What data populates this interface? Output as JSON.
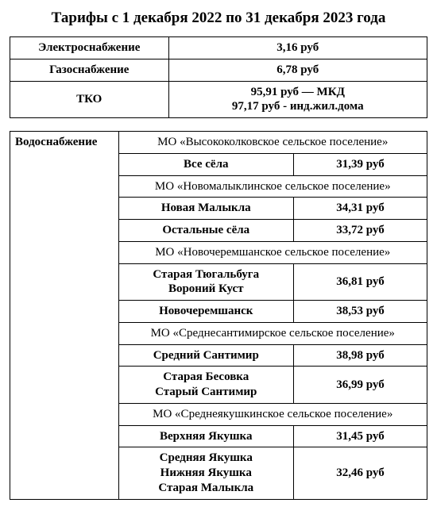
{
  "title": "Тарифы с 1 декабря 2022 по 31 декабря 2023 года",
  "topTable": {
    "rows": [
      {
        "label": "Электроснабжение",
        "value": "3,16 руб"
      },
      {
        "label": "Газоснабжение",
        "value": "6,78 руб"
      },
      {
        "label": "ТКО",
        "value": "95,91 руб — МКД\n97,17 руб - инд.жил.дома"
      }
    ]
  },
  "water": {
    "label": "Водоснабжение",
    "sections": [
      {
        "name": "МО «Высококолковское сельское поселение»",
        "rows": [
          {
            "place": "Все сёла",
            "price": "31,39 руб"
          }
        ]
      },
      {
        "name": "МО «Новомалыклинское сельское поселение»",
        "rows": [
          {
            "place": "Новая Малыкла",
            "price": "34,31 руб"
          },
          {
            "place": "Остальные сёла",
            "price": "33,72 руб"
          }
        ]
      },
      {
        "name": "МО «Новочеремшанское сельское поселение»",
        "rows": [
          {
            "place": "Старая Тюгальбуга\nВороний Куст",
            "price": "36,81 руб"
          },
          {
            "place": "Новочеремшанск",
            "price": "38,53 руб"
          }
        ]
      },
      {
        "name": "МО «Среднесантимирское сельское поселение»",
        "rows": [
          {
            "place": "Средний Сантимир",
            "price": "38,98 руб"
          },
          {
            "place": "Старая Бесовка\nСтарый Сантимир",
            "price": "36,99 руб"
          }
        ]
      },
      {
        "name": "МО «Среднеякушкинское сельское поселение»",
        "rows": [
          {
            "place": "Верхняя Якушка",
            "price": "31,45 руб"
          },
          {
            "place": "Средняя Якушка\nНижняя Якушка\nСтарая Малыкла",
            "price": "32,46 руб"
          }
        ]
      }
    ]
  }
}
